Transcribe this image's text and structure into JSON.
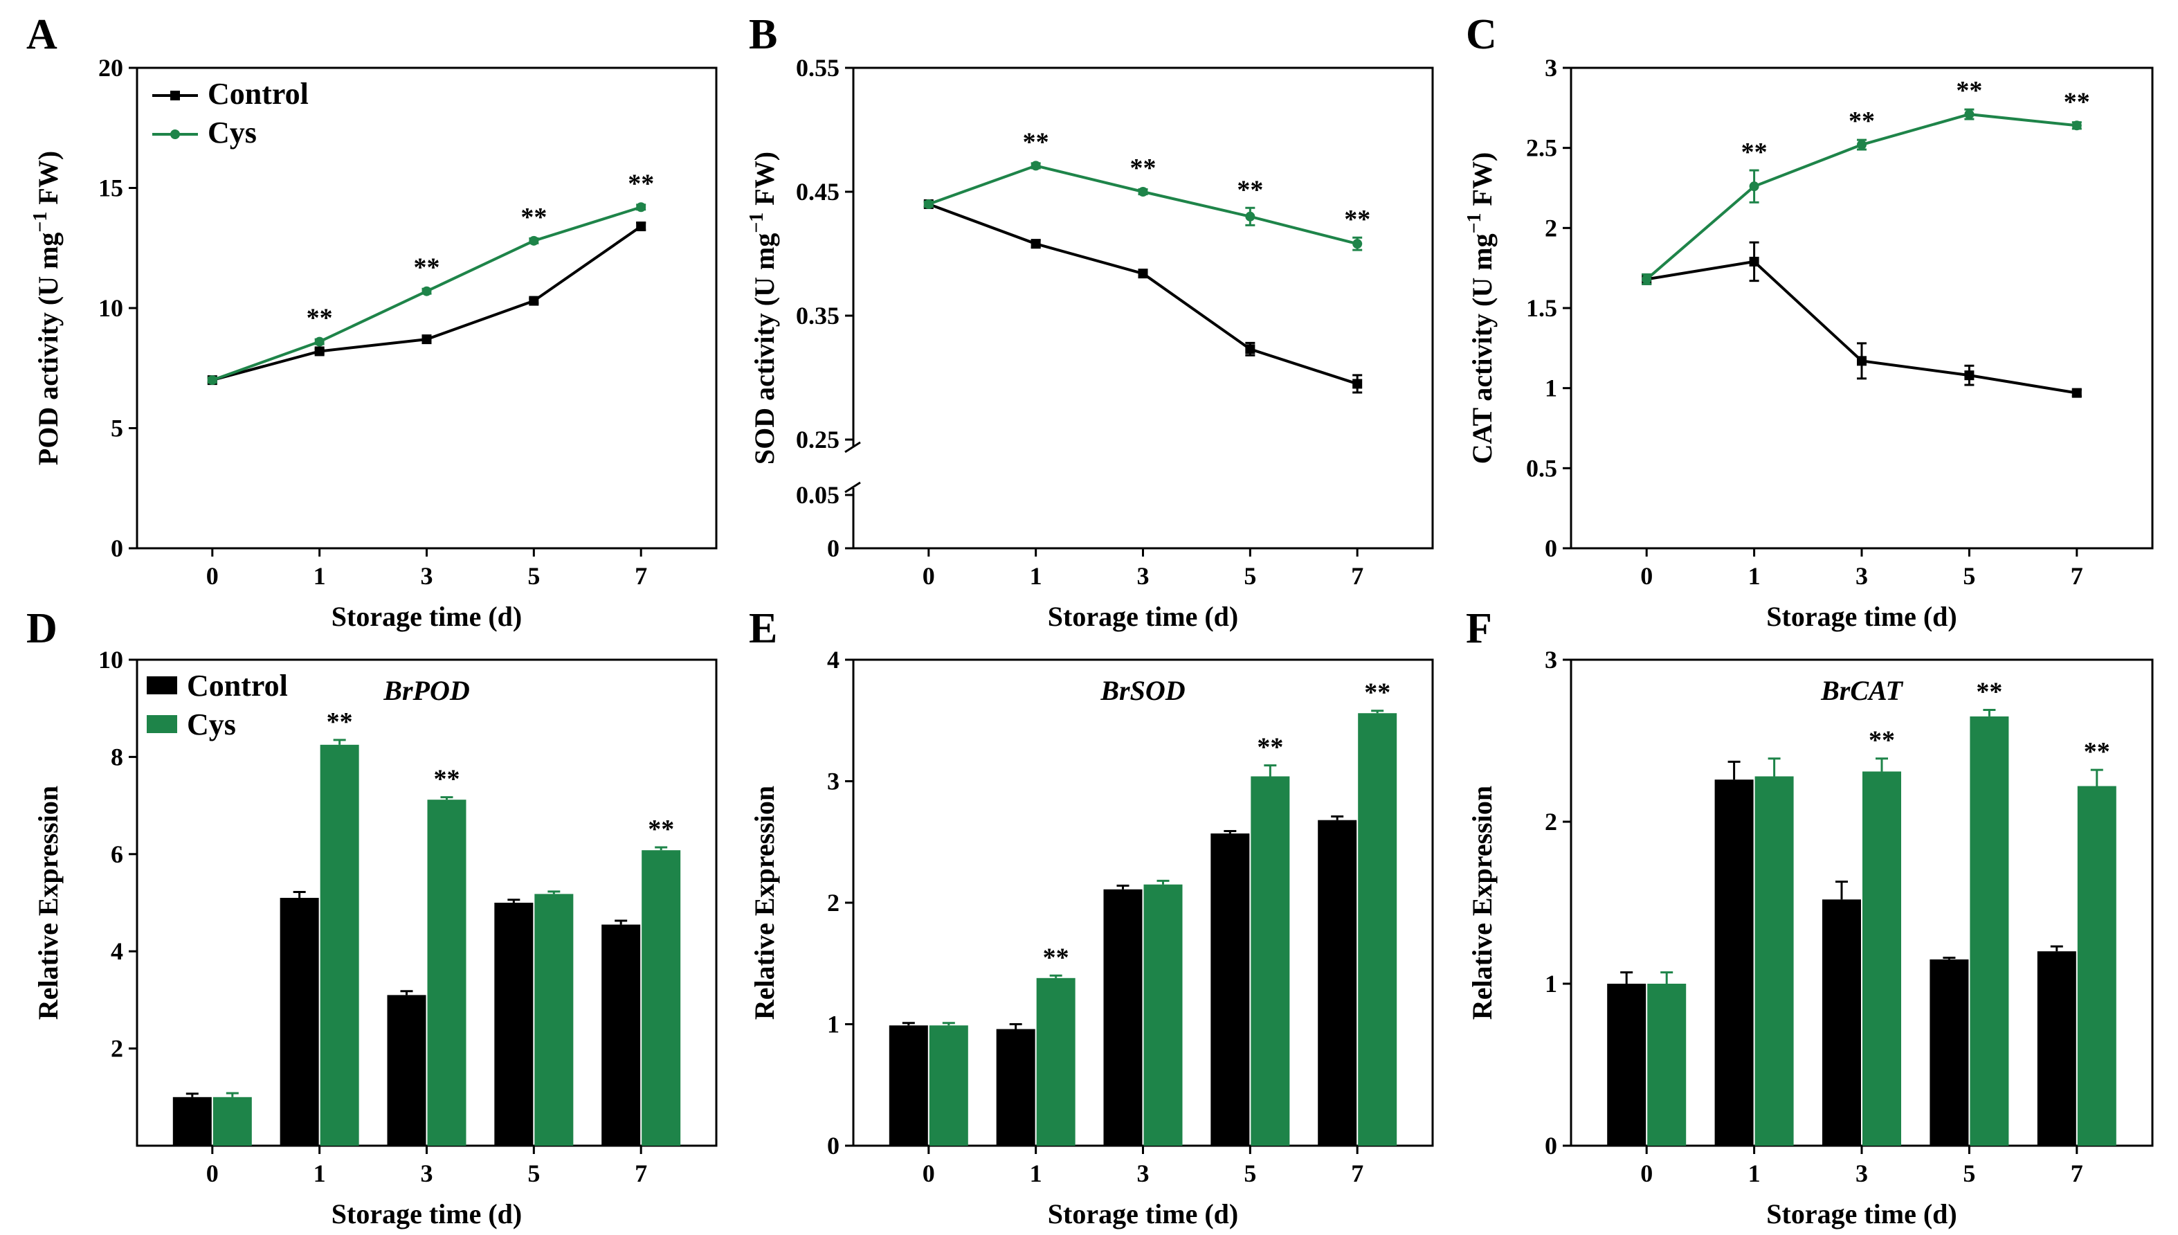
{
  "colors": {
    "control": "#000000",
    "cys": "#1e8449"
  },
  "chart_data": [
    {
      "panel": "A",
      "type": "line",
      "categories": [
        "0",
        "1",
        "3",
        "5",
        "7"
      ],
      "xlabel": "Storage time (d)",
      "ylabel_main": "POD activity (U mg",
      "ylabel_sup": "−1",
      "ylabel_tail": " FW)",
      "ylim": [
        0,
        20
      ],
      "yticks": [
        "0",
        "5",
        "10",
        "15",
        "20"
      ],
      "legend": {
        "position": "top-left",
        "style": "line",
        "labels": [
          "Control",
          "Cys"
        ]
      },
      "series": [
        {
          "name": "Control",
          "values": [
            7.0,
            8.2,
            8.7,
            10.3,
            13.4
          ],
          "errors": [
            0.1,
            0.1,
            0.1,
            0.1,
            0.15
          ]
        },
        {
          "name": "Cys",
          "values": [
            7.0,
            8.6,
            10.7,
            12.8,
            14.2
          ],
          "errors": [
            0.1,
            0.1,
            0.1,
            0.1,
            0.1
          ]
        }
      ],
      "significance": [
        "",
        "**",
        "**",
        "**",
        "**"
      ]
    },
    {
      "panel": "B",
      "type": "line",
      "categories": [
        "0",
        "1",
        "3",
        "5",
        "7"
      ],
      "xlabel": "Storage time (d)",
      "ylabel_main": "SOD activity (U mg",
      "ylabel_sup": "−1",
      "ylabel_tail": " FW)",
      "axis_break": true,
      "ylim_upper": [
        0.25,
        0.55
      ],
      "yticks_upper": [
        "0.25",
        "0.35",
        "0.45",
        "0.55"
      ],
      "ylim_lower": [
        0,
        0.05
      ],
      "yticks_lower": [
        "0",
        "0.05"
      ],
      "series": [
        {
          "name": "Control",
          "values": [
            0.44,
            0.408,
            0.384,
            0.323,
            0.295
          ],
          "errors": [
            0.002,
            0.003,
            0.003,
            0.005,
            0.007
          ]
        },
        {
          "name": "Cys",
          "values": [
            0.44,
            0.471,
            0.45,
            0.43,
            0.408
          ],
          "errors": [
            0.002,
            0.002,
            0.002,
            0.007,
            0.005
          ]
        }
      ],
      "significance": [
        "",
        "**",
        "**",
        "**",
        "**"
      ]
    },
    {
      "panel": "C",
      "type": "line",
      "categories": [
        "0",
        "1",
        "3",
        "5",
        "7"
      ],
      "xlabel": "Storage time (d)",
      "ylabel_main": "CAT activity (U mg",
      "ylabel_sup": "−1",
      "ylabel_tail": " FW)",
      "ylim": [
        0,
        3
      ],
      "yticks": [
        "0",
        "0.5",
        "1",
        "1.5",
        "2",
        "2.5",
        "3"
      ],
      "series": [
        {
          "name": "Control",
          "values": [
            1.68,
            1.79,
            1.17,
            1.08,
            0.97
          ],
          "errors": [
            0.03,
            0.12,
            0.11,
            0.06,
            0.02
          ]
        },
        {
          "name": "Cys",
          "values": [
            1.68,
            2.26,
            2.52,
            2.71,
            2.64
          ],
          "errors": [
            0.03,
            0.1,
            0.03,
            0.03,
            0.02
          ]
        }
      ],
      "significance": [
        "",
        "**",
        "**",
        "**",
        "**"
      ]
    },
    {
      "panel": "D",
      "type": "bar",
      "categories": [
        "0",
        "1",
        "3",
        "5",
        "7"
      ],
      "xlabel": "Storage time (d)",
      "ylabel": "Relative Expression",
      "gene": "BrPOD",
      "ylim": [
        0,
        10
      ],
      "yticks": [
        "2",
        "4",
        "6",
        "8",
        "10"
      ],
      "legend": {
        "position": "top-left",
        "style": "box",
        "labels": [
          "Control",
          "Cys"
        ]
      },
      "series": [
        {
          "name": "Control",
          "values": [
            1.0,
            5.1,
            3.1,
            5.0,
            4.55
          ],
          "errors": [
            0.07,
            0.12,
            0.08,
            0.06,
            0.08
          ]
        },
        {
          "name": "Cys",
          "values": [
            1.0,
            8.25,
            7.12,
            5.18,
            6.08
          ],
          "errors": [
            0.08,
            0.1,
            0.05,
            0.05,
            0.06
          ]
        }
      ],
      "significance": [
        "",
        "**",
        "**",
        "",
        "**"
      ]
    },
    {
      "panel": "E",
      "type": "bar",
      "categories": [
        "0",
        "1",
        "3",
        "5",
        "7"
      ],
      "xlabel": "Storage time (d)",
      "ylabel": "Relative Expression",
      "gene": "BrSOD",
      "ylim": [
        0,
        4
      ],
      "yticks": [
        "0",
        "1",
        "2",
        "3",
        "4"
      ],
      "series": [
        {
          "name": "Control",
          "values": [
            0.99,
            0.96,
            2.11,
            2.57,
            2.68
          ],
          "errors": [
            0.02,
            0.04,
            0.03,
            0.02,
            0.03
          ]
        },
        {
          "name": "Cys",
          "values": [
            0.99,
            1.38,
            2.15,
            3.04,
            3.56
          ],
          "errors": [
            0.02,
            0.02,
            0.03,
            0.09,
            0.02
          ]
        }
      ],
      "significance": [
        "",
        "**",
        "",
        "**",
        "**"
      ]
    },
    {
      "panel": "F",
      "type": "bar",
      "categories": [
        "0",
        "1",
        "3",
        "5",
        "7"
      ],
      "xlabel": "Storage time (d)",
      "ylabel": "Relative Expression",
      "gene": "BrCAT",
      "ylim": [
        0,
        3
      ],
      "yticks": [
        "0",
        "1",
        "2",
        "3"
      ],
      "series": [
        {
          "name": "Control",
          "values": [
            1.0,
            2.26,
            1.52,
            1.15,
            1.2
          ],
          "errors": [
            0.07,
            0.11,
            0.11,
            0.01,
            0.03
          ]
        },
        {
          "name": "Cys",
          "values": [
            1.0,
            2.28,
            2.31,
            2.65,
            2.22
          ],
          "errors": [
            0.07,
            0.11,
            0.08,
            0.04,
            0.1
          ]
        }
      ],
      "significance": [
        "",
        "",
        "**",
        "**",
        "**"
      ]
    }
  ]
}
